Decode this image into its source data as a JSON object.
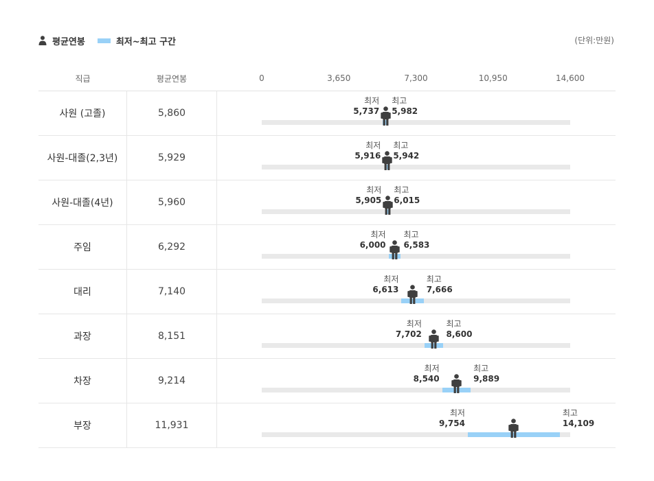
{
  "legend": {
    "avg_label": "평균연봉",
    "range_label": "최저~최고 구간",
    "person_icon": "person-icon"
  },
  "unit_label": "(단위:만원)",
  "table": {
    "grade_header": "직급",
    "avg_header": "평균연봉"
  },
  "colors": {
    "range": "#99d1f7",
    "track": "#e9e9e9",
    "person": "#3f3f3f"
  },
  "chart_data": {
    "type": "range-dot",
    "xlim": [
      0,
      14600
    ],
    "ticks": [
      "0",
      "3,650",
      "7,300",
      "10,950",
      "14,600"
    ],
    "tick_values": [
      0,
      3650,
      7300,
      10950,
      14600
    ],
    "min_caption": "최저",
    "max_caption": "최고",
    "rows": [
      {
        "grade": "사원 (고졸)",
        "avg": 5860,
        "avg_label": "5,860",
        "min": 5737,
        "min_label": "5,737",
        "max": 5982,
        "max_label": "5,982"
      },
      {
        "grade": "사원-대졸(2,3년)",
        "avg": 5929,
        "avg_label": "5,929",
        "min": 5916,
        "min_label": "5,916",
        "max": 5942,
        "max_label": "5,942"
      },
      {
        "grade": "사원-대졸(4년)",
        "avg": 5960,
        "avg_label": "5,960",
        "min": 5905,
        "min_label": "5,905",
        "max": 6015,
        "max_label": "6,015"
      },
      {
        "grade": "주임",
        "avg": 6292,
        "avg_label": "6,292",
        "min": 6000,
        "min_label": "6,000",
        "max": 6583,
        "max_label": "6,583"
      },
      {
        "grade": "대리",
        "avg": 7140,
        "avg_label": "7,140",
        "min": 6613,
        "min_label": "6,613",
        "max": 7666,
        "max_label": "7,666"
      },
      {
        "grade": "과장",
        "avg": 8151,
        "avg_label": "8,151",
        "min": 7702,
        "min_label": "7,702",
        "max": 8600,
        "max_label": "8,600"
      },
      {
        "grade": "차장",
        "avg": 9214,
        "avg_label": "9,214",
        "min": 8540,
        "min_label": "8,540",
        "max": 9889,
        "max_label": "9,889"
      },
      {
        "grade": "부장",
        "avg": 11931,
        "avg_label": "11,931",
        "min": 9754,
        "min_label": "9,754",
        "max": 14109,
        "max_label": "14,109"
      }
    ]
  }
}
